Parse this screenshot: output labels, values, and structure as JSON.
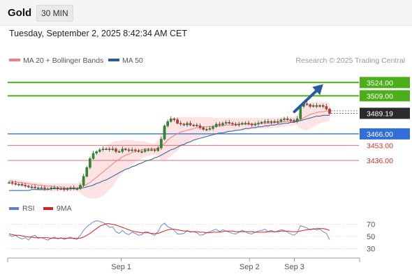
{
  "header": {
    "instrument": "Gold",
    "timeframe": "30 MIN",
    "datetime": "Tuesday, September 2, 2025 8:42:34 AM CET"
  },
  "legend": {
    "items": [
      {
        "label": "MA 20 + Bollinger Bands",
        "color": "#f08080"
      },
      {
        "label": "MA 50",
        "color": "#2a5a9e"
      }
    ],
    "credit": "Research © 2025 Trading Central"
  },
  "colors": {
    "resistance": "#4caf1a",
    "pivot": "#4a7fd6",
    "support": "#e07070",
    "band_fill": "#fde3e3",
    "candle": "#2e8b2e",
    "arrow": "#2a5a9e",
    "rsi_line": "#5b7fd6",
    "rsi_ma": "#d62020",
    "last_price_bg": "#2b2b2b"
  },
  "chart_data": [
    {
      "type": "candlestick",
      "name": "price",
      "last_price": 3489.19,
      "ylim": [
        3395,
        3540
      ],
      "xlim": [
        0,
        100
      ],
      "x_ticks": [
        {
          "label": "Sep 1",
          "x": 35
        },
        {
          "label": "Sep 2",
          "x": 75
        },
        {
          "label": "Sep 3",
          "x": 89
        }
      ],
      "levels": [
        {
          "value": 3524.0,
          "label": "3524.00",
          "kind": "resistance"
        },
        {
          "value": 3509.0,
          "label": "3509.00",
          "kind": "resistance"
        },
        {
          "value": 3466.0,
          "label": "3466.00",
          "kind": "pivot"
        },
        {
          "value": 3453.0,
          "label": "3453.00",
          "kind": "support"
        },
        {
          "value": 3436.0,
          "label": "3436.00",
          "kind": "support"
        }
      ],
      "forecast_arrow": {
        "from": [
          89,
          3491
        ],
        "to": [
          98,
          3522
        ]
      },
      "close": [
        3411,
        3410,
        3409,
        3409,
        3408,
        3407,
        3406,
        3406,
        3405,
        3405,
        3405,
        3404,
        3404,
        3405,
        3405,
        3404,
        3404,
        3403,
        3404,
        3405,
        3404,
        3404,
        3408,
        3418,
        3428,
        3438,
        3444,
        3446,
        3448,
        3449,
        3449,
        3448,
        3449,
        3446,
        3446,
        3449,
        3448,
        3447,
        3448,
        3447,
        3446,
        3446,
        3448,
        3448,
        3448,
        3447,
        3450,
        3460,
        3475,
        3480,
        3483,
        3482,
        3478,
        3477,
        3476,
        3478,
        3476,
        3476,
        3475,
        3473,
        3471,
        3471,
        3472,
        3474,
        3477,
        3476,
        3478,
        3479,
        3478,
        3477,
        3476,
        3477,
        3478,
        3478,
        3477,
        3476,
        3477,
        3478,
        3479,
        3480,
        3479,
        3480,
        3479,
        3480,
        3482,
        3483,
        3482,
        3481,
        3480,
        3483,
        3497,
        3500,
        3499,
        3497,
        3498,
        3497,
        3498,
        3497,
        3494,
        3489
      ],
      "ma20": [
        3413,
        3412,
        3412,
        3411,
        3411,
        3410,
        3410,
        3409,
        3409,
        3408,
        3408,
        3407,
        3407,
        3407,
        3406,
        3406,
        3406,
        3405,
        3405,
        3405,
        3405,
        3405,
        3406,
        3407,
        3409,
        3411,
        3414,
        3417,
        3420,
        3423,
        3426,
        3429,
        3432,
        3435,
        3437,
        3440,
        3442,
        3443,
        3445,
        3446,
        3447,
        3448,
        3449,
        3449,
        3449,
        3449,
        3450,
        3452,
        3455,
        3459,
        3462,
        3464,
        3466,
        3468,
        3469,
        3470,
        3471,
        3472,
        3473,
        3473,
        3474,
        3474,
        3474,
        3475,
        3475,
        3475,
        3475,
        3476,
        3476,
        3476,
        3476,
        3477,
        3477,
        3477,
        3477,
        3477,
        3477,
        3478,
        3478,
        3478,
        3478,
        3478,
        3479,
        3479,
        3479,
        3480,
        3480,
        3480,
        3481,
        3481,
        3482,
        3484,
        3486,
        3488,
        3489,
        3490,
        3491,
        3491,
        3492,
        3492
      ],
      "ma50": [
        3402,
        3402,
        3402,
        3402,
        3402,
        3402,
        3402,
        3403,
        3403,
        3403,
        3403,
        3403,
        3403,
        3404,
        3404,
        3404,
        3404,
        3404,
        3404,
        3404,
        3404,
        3404,
        3405,
        3405,
        3406,
        3407,
        3408,
        3410,
        3411,
        3413,
        3414,
        3416,
        3418,
        3420,
        3422,
        3424,
        3426,
        3427,
        3429,
        3430,
        3432,
        3433,
        3435,
        3436,
        3437,
        3439,
        3440,
        3442,
        3444,
        3446,
        3448,
        3449,
        3451,
        3453,
        3454,
        3456,
        3457,
        3459,
        3460,
        3461,
        3462,
        3463,
        3464,
        3465,
        3466,
        3467,
        3467,
        3468,
        3469,
        3469,
        3470,
        3470,
        3471,
        3472,
        3472,
        3473,
        3473,
        3474,
        3474,
        3475,
        3475,
        3476,
        3476,
        3477,
        3477,
        3478,
        3478,
        3479,
        3479,
        3480,
        3481,
        3482,
        3483,
        3484,
        3485,
        3486,
        3486,
        3487,
        3487,
        3487
      ],
      "bb_upper": [
        3415,
        3415,
        3414,
        3414,
        3413,
        3413,
        3412,
        3412,
        3411,
        3411,
        3411,
        3410,
        3410,
        3410,
        3410,
        3410,
        3410,
        3410,
        3410,
        3410,
        3410,
        3410,
        3413,
        3418,
        3424,
        3431,
        3437,
        3442,
        3446,
        3450,
        3453,
        3455,
        3457,
        3458,
        3458,
        3459,
        3459,
        3459,
        3459,
        3458,
        3458,
        3458,
        3457,
        3456,
        3455,
        3455,
        3459,
        3467,
        3475,
        3480,
        3483,
        3484,
        3485,
        3485,
        3485,
        3485,
        3485,
        3485,
        3485,
        3485,
        3485,
        3485,
        3485,
        3484,
        3484,
        3484,
        3484,
        3484,
        3484,
        3484,
        3484,
        3484,
        3484,
        3484,
        3484,
        3484,
        3484,
        3484,
        3484,
        3484,
        3484,
        3484,
        3484,
        3484,
        3485,
        3485,
        3485,
        3485,
        3485,
        3487,
        3493,
        3497,
        3500,
        3501,
        3502,
        3502,
        3502,
        3502,
        3502,
        3501
      ],
      "bb_lower": [
        3409,
        3409,
        3408,
        3408,
        3407,
        3406,
        3405,
        3404,
        3403,
        3402,
        3401,
        3401,
        3401,
        3401,
        3401,
        3401,
        3401,
        3401,
        3401,
        3401,
        3401,
        3401,
        3399,
        3396,
        3394,
        3393,
        3393,
        3393,
        3394,
        3396,
        3399,
        3403,
        3407,
        3412,
        3417,
        3421,
        3425,
        3428,
        3431,
        3434,
        3436,
        3438,
        3440,
        3441,
        3442,
        3443,
        3441,
        3437,
        3435,
        3438,
        3441,
        3444,
        3447,
        3451,
        3453,
        3455,
        3457,
        3459,
        3461,
        3462,
        3463,
        3464,
        3465,
        3466,
        3466,
        3467,
        3467,
        3468,
        3468,
        3469,
        3469,
        3470,
        3470,
        3470,
        3471,
        3471,
        3471,
        3472,
        3472,
        3472,
        3472,
        3473,
        3473,
        3473,
        3474,
        3474,
        3475,
        3475,
        3476,
        3476,
        3472,
        3470,
        3470,
        3472,
        3474,
        3476,
        3478,
        3479,
        3480,
        3481
      ]
    },
    {
      "type": "line",
      "name": "rsi",
      "ylim": [
        20,
        80
      ],
      "y_ticks": [
        70,
        50,
        30
      ],
      "series": [
        {
          "name": "RSI",
          "values": [
            52,
            50,
            52,
            48,
            46,
            48,
            44,
            50,
            52,
            47,
            48,
            46,
            44,
            47,
            49,
            46,
            48,
            45,
            47,
            49,
            46,
            45,
            52,
            60,
            66,
            70,
            74,
            76,
            75,
            73,
            70,
            65,
            66,
            58,
            55,
            60,
            55,
            53,
            57,
            55,
            52,
            53,
            58,
            57,
            54,
            52,
            58,
            68,
            72,
            66,
            64,
            60,
            54,
            54,
            55,
            60,
            57,
            58,
            56,
            52,
            53,
            56,
            58,
            60,
            62,
            58,
            61,
            59,
            57,
            55,
            54,
            57,
            60,
            58,
            55,
            54,
            57,
            59,
            60,
            62,
            58,
            60,
            57,
            59,
            61,
            60,
            57,
            54,
            52,
            56,
            68,
            66,
            64,
            61,
            63,
            61,
            62,
            58,
            55,
            45
          ]
        },
        {
          "name": "9MA",
          "values": [
            54,
            53,
            52,
            52,
            51,
            50,
            49,
            49,
            48,
            48,
            48,
            48,
            48,
            47,
            47,
            47,
            47,
            47,
            47,
            47,
            47,
            47,
            47,
            49,
            52,
            55,
            59,
            63,
            67,
            69,
            71,
            71,
            70,
            69,
            67,
            65,
            63,
            61,
            59,
            58,
            57,
            56,
            56,
            56,
            55,
            55,
            55,
            57,
            59,
            61,
            62,
            62,
            61,
            60,
            59,
            59,
            58,
            58,
            58,
            57,
            57,
            56,
            56,
            57,
            57,
            57,
            58,
            59,
            59,
            59,
            58,
            58,
            58,
            58,
            58,
            58,
            57,
            57,
            57,
            57,
            58,
            58,
            58,
            58,
            59,
            59,
            59,
            58,
            58,
            58,
            59,
            60,
            61,
            62,
            62,
            63,
            63,
            63,
            62,
            60
          ]
        }
      ]
    }
  ]
}
